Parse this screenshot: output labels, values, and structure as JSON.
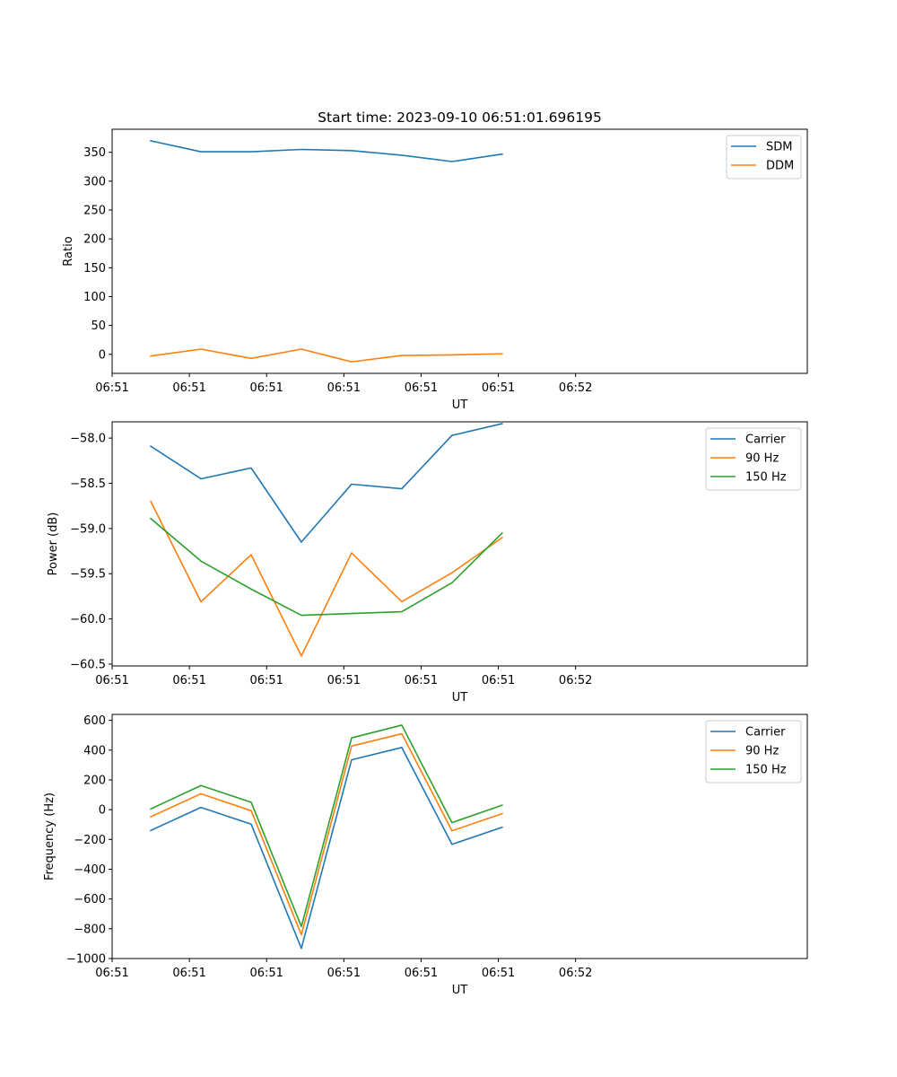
{
  "chart_data": [
    {
      "type": "line",
      "title": "Start time: 2023-09-10 06:51:01.696195",
      "xlabel": "UT",
      "ylabel": "Ratio",
      "xlim": [
        0,
        9
      ],
      "ylim": [
        -33,
        390
      ],
      "x": [
        0.5,
        1.15,
        1.8,
        2.45,
        3.1,
        3.75,
        4.4,
        5.05
      ],
      "x_ticks": [
        0,
        1,
        2,
        3,
        4,
        5,
        6
      ],
      "x_tick_labels": [
        "06:51",
        "06:51",
        "06:51",
        "06:51",
        "06:51",
        "06:51",
        "06:52"
      ],
      "y_ticks": [
        0,
        50,
        100,
        150,
        200,
        250,
        300,
        350
      ],
      "y_tick_labels": [
        "0",
        "50",
        "100",
        "150",
        "200",
        "250",
        "300",
        "350"
      ],
      "legend_position": "top-right",
      "series": [
        {
          "name": "SDM",
          "color": "#1f77b4",
          "values": [
            370,
            351,
            351,
            355,
            353,
            345,
            334,
            347
          ]
        },
        {
          "name": "DDM",
          "color": "#ff7f0e",
          "values": [
            -3,
            9,
            -7,
            9,
            -13,
            -2,
            -1,
            1
          ]
        }
      ]
    },
    {
      "type": "line",
      "xlabel": "UT",
      "ylabel": "Power (dB)",
      "xlim": [
        0,
        9
      ],
      "ylim": [
        -60.52,
        -57.82
      ],
      "x": [
        0.5,
        1.15,
        1.8,
        2.45,
        3.1,
        3.75,
        4.4,
        5.05
      ],
      "x_ticks": [
        0,
        1,
        2,
        3,
        4,
        5,
        6
      ],
      "x_tick_labels": [
        "06:51",
        "06:51",
        "06:51",
        "06:51",
        "06:51",
        "06:51",
        "06:52"
      ],
      "y_ticks": [
        -60.5,
        -60.0,
        -59.5,
        -59.0,
        -58.5,
        -58.0
      ],
      "y_tick_labels": [
        "−60.5",
        "−60.0",
        "−59.5",
        "−59.0",
        "−58.5",
        "−58.0"
      ],
      "legend_position": "top-right",
      "series": [
        {
          "name": "Carrier",
          "color": "#1f77b4",
          "values": [
            -58.09,
            -58.45,
            -58.33,
            -59.15,
            -58.51,
            -58.56,
            -57.97,
            -57.84
          ]
        },
        {
          "name": "90 Hz",
          "color": "#ff7f0e",
          "values": [
            -58.7,
            -59.81,
            -59.29,
            -60.41,
            -59.27,
            -59.81,
            -59.49,
            -59.1
          ]
        },
        {
          "name": "150 Hz",
          "color": "#2ca02c",
          "values": [
            -58.89,
            -59.36,
            -59.67,
            -59.96,
            -59.94,
            -59.92,
            -59.6,
            -59.05
          ]
        }
      ]
    },
    {
      "type": "line",
      "xlabel": "UT",
      "ylabel": "Frequency (Hz)",
      "xlim": [
        0,
        9
      ],
      "ylim": [
        -1000,
        640
      ],
      "x": [
        0.5,
        1.15,
        1.8,
        2.45,
        3.1,
        3.75,
        4.4,
        5.05
      ],
      "x_ticks": [
        0,
        1,
        2,
        3,
        4,
        5,
        6
      ],
      "x_tick_labels": [
        "06:51",
        "06:51",
        "06:51",
        "06:51",
        "06:51",
        "06:51",
        "06:52"
      ],
      "y_ticks": [
        -1000,
        -800,
        -600,
        -400,
        -200,
        0,
        200,
        400,
        600
      ],
      "y_tick_labels": [
        "−1000",
        "−800",
        "−600",
        "−400",
        "−200",
        "0",
        "200",
        "400",
        "600"
      ],
      "legend_position": "top-right",
      "series": [
        {
          "name": "Carrier",
          "color": "#1f77b4",
          "values": [
            -140,
            15,
            -97,
            -932,
            335,
            418,
            -233,
            -118
          ]
        },
        {
          "name": "90 Hz",
          "color": "#ff7f0e",
          "values": [
            -48,
            107,
            -7,
            -840,
            427,
            510,
            -142,
            -26
          ]
        },
        {
          "name": "150 Hz",
          "color": "#2ca02c",
          "values": [
            5,
            162,
            50,
            -785,
            482,
            568,
            -87,
            30
          ]
        }
      ]
    }
  ]
}
